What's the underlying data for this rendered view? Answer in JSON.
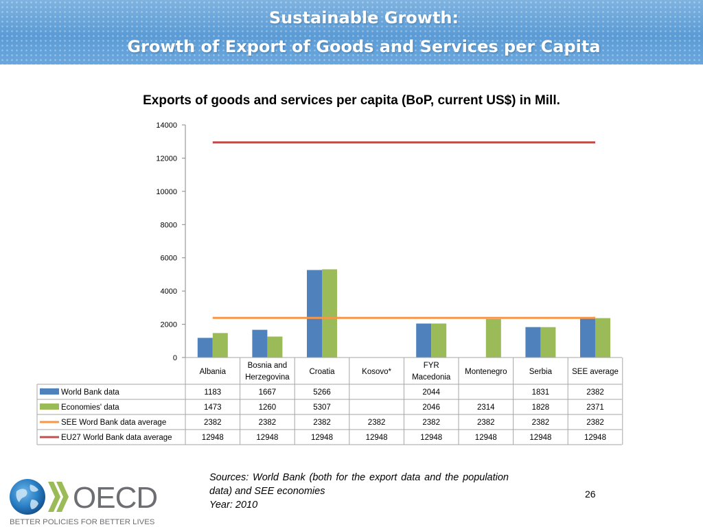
{
  "header": {
    "line1": "Sustainable Growth:",
    "line2": "Growth of Export of Goods and Services per Capita"
  },
  "chart_data": {
    "type": "bar",
    "title": "Exports of goods and services per capita (BoP, current US$) in Mill.",
    "categories": [
      [
        "Albania"
      ],
      [
        "Bosnia and",
        "Herzegovina"
      ],
      [
        "Croatia"
      ],
      [
        "Kosovo*"
      ],
      [
        "FYR",
        "Macedonia"
      ],
      [
        "Montenegro"
      ],
      [
        "Serbia"
      ],
      [
        "SEE average"
      ]
    ],
    "ylim": [
      0,
      14000
    ],
    "yticks": [
      0,
      2000,
      4000,
      6000,
      8000,
      10000,
      12000,
      14000
    ],
    "series": [
      {
        "name": "World Bank data",
        "kind": "bar",
        "color": "#4f81bd",
        "values": [
          1183,
          1667,
          5266,
          null,
          2044,
          null,
          1831,
          2382
        ]
      },
      {
        "name": "Economies' data",
        "kind": "bar",
        "color": "#9bbb59",
        "values": [
          1473,
          1260,
          5307,
          null,
          2046,
          2314,
          1828,
          2371
        ]
      },
      {
        "name": "SEE Word Bank data average",
        "kind": "line",
        "color": "#f79646",
        "values": [
          2382,
          2382,
          2382,
          2382,
          2382,
          2382,
          2382,
          2382
        ]
      },
      {
        "name": "EU27 World Bank data average",
        "kind": "line",
        "color": "#c0504d",
        "values": [
          12948,
          12948,
          12948,
          12948,
          12948,
          12948,
          12948,
          12948
        ]
      }
    ],
    "legend": "data-table"
  },
  "footer": {
    "sources": "Sources: World Bank (both for the export data and the population data) and SEE economies",
    "year": "Year: 2010",
    "page_number": "26",
    "logo_text": "OECD",
    "logo_tagline": "BETTER POLICIES FOR BETTER LIVES"
  }
}
